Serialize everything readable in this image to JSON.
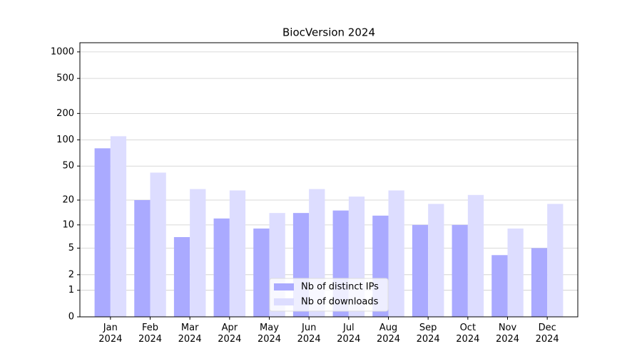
{
  "chart_data": {
    "type": "bar",
    "title": "BiocVersion 2024",
    "categories": [
      "Jan\n2024",
      "Feb\n2024",
      "Mar\n2024",
      "Apr\n2024",
      "May\n2024",
      "Jun\n2024",
      "Jul\n2024",
      "Aug\n2024",
      "Sep\n2024",
      "Oct\n2024",
      "Nov\n2024",
      "Dec\n2024"
    ],
    "series": [
      {
        "name": "Nb of distinct IPs",
        "color": "#aaaaff",
        "values": [
          80,
          20,
          7,
          12,
          9,
          14,
          15,
          13,
          10,
          10,
          4,
          5
        ]
      },
      {
        "name": "Nb of downloads",
        "color": "#ddddff",
        "values": [
          110,
          42,
          27,
          26,
          14,
          27,
          22,
          26,
          18,
          23,
          9,
          18
        ]
      }
    ],
    "yscale": "log1p",
    "ylim": [
      0,
      1270
    ],
    "yticks": [
      0,
      1,
      2,
      5,
      10,
      20,
      50,
      100,
      200,
      500,
      1000
    ],
    "grid": true,
    "legend": "lower center"
  }
}
